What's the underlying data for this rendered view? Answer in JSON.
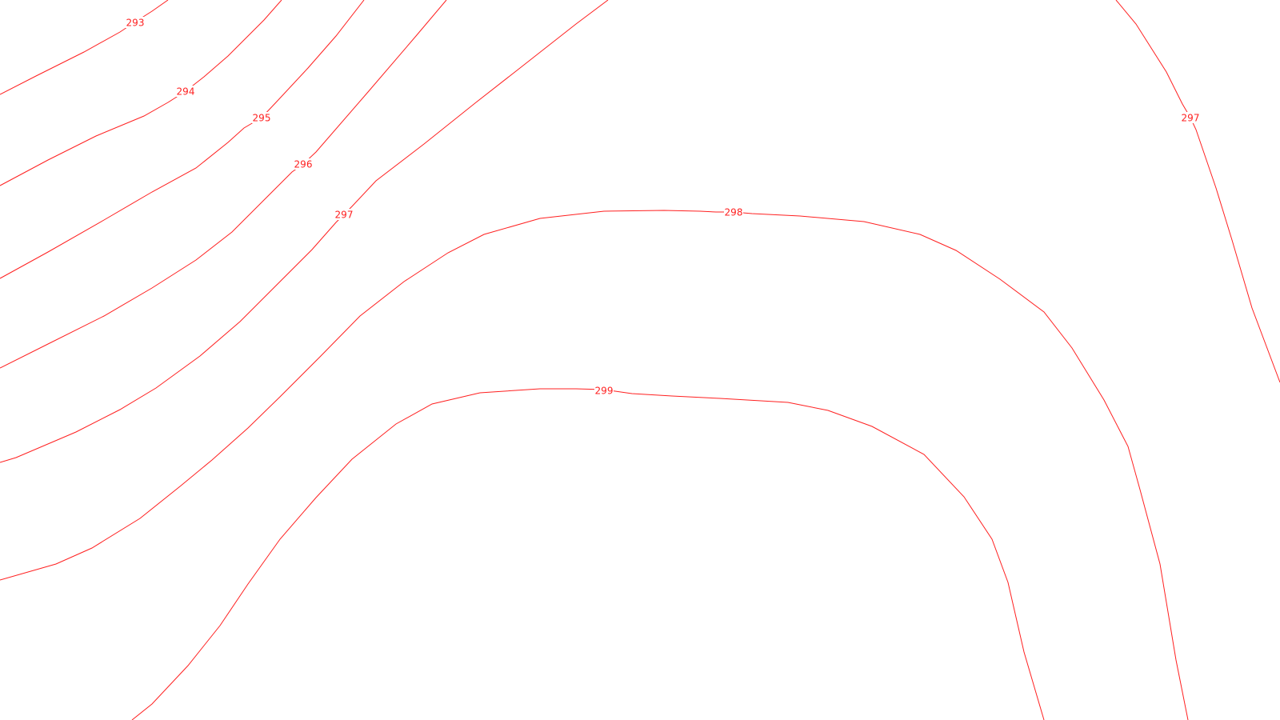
{
  "map": {
    "type": "contour-map",
    "line_color": "#ff2020",
    "label_color": "#ff2020",
    "background": "#ffffff",
    "contour_levels": [
      {
        "value": 293,
        "label": "293"
      },
      {
        "value": 294,
        "label": "294"
      },
      {
        "value": 295,
        "label": "295"
      },
      {
        "value": 296,
        "label": "296"
      },
      {
        "value": 297,
        "label": "297"
      },
      {
        "value": 298,
        "label": "298"
      },
      {
        "value": 299,
        "label": "299"
      },
      {
        "value": 297,
        "label": "297"
      }
    ]
  }
}
